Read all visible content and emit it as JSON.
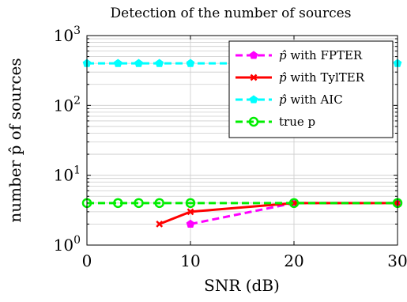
{
  "chart_data": {
    "type": "line",
    "title": "Detection of the number of sources",
    "xlabel": "SNR (dB)",
    "ylabel": "number p̂ of sources",
    "x_ticks": [
      {
        "value": 0,
        "label": "0"
      },
      {
        "value": 10,
        "label": "10"
      },
      {
        "value": 20,
        "label": "20"
      },
      {
        "value": 30,
        "label": "30"
      }
    ],
    "y_ticks": [
      {
        "value": 1,
        "base": "10",
        "exp": "0"
      },
      {
        "value": 10,
        "base": "10",
        "exp": "1"
      },
      {
        "value": 100,
        "base": "10",
        "exp": "2"
      },
      {
        "value": 1000,
        "base": "10",
        "exp": "3"
      }
    ],
    "xlim": [
      0,
      30
    ],
    "ylim": [
      1,
      1000
    ],
    "y_scale": "log",
    "grid": true,
    "legend_position": "top-right",
    "series": [
      {
        "name": "p̂ with FPTER",
        "legend_symbol": "p̂",
        "legend_suffix": " with FPTER",
        "color": "#ff00ff",
        "dashed": true,
        "marker": "pentagon",
        "x": [
          10,
          20,
          30
        ],
        "y": [
          2,
          4,
          4
        ]
      },
      {
        "name": "p̂ with TylTER",
        "legend_symbol": "p̂",
        "legend_suffix": " with TylTER",
        "color": "#ff0000",
        "dashed": false,
        "marker": "x",
        "x": [
          7,
          10,
          20,
          30
        ],
        "y": [
          2,
          3,
          4,
          4
        ]
      },
      {
        "name": "p̂ with AIC",
        "legend_symbol": "p̂",
        "legend_suffix": " with AIC",
        "color": "#00ffff",
        "dashed": true,
        "marker": "pentagon",
        "x": [
          0,
          3,
          5,
          7,
          10,
          20,
          30
        ],
        "y": [
          400,
          400,
          400,
          400,
          400,
          400,
          400
        ]
      },
      {
        "name": "true p",
        "legend_symbol": "",
        "legend_suffix": "true p",
        "color": "#00ee00",
        "dashed": true,
        "marker": "circle",
        "x": [
          0,
          3,
          5,
          7,
          10,
          20,
          30
        ],
        "y": [
          4,
          4,
          4,
          4,
          4,
          4,
          4
        ]
      }
    ]
  }
}
